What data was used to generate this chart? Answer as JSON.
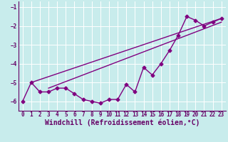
{
  "xlabel": "Windchill (Refroidissement éolien,°C)",
  "bg_color": "#c8ecec",
  "grid_color": "#aad8d8",
  "line_color": "#800080",
  "xlim": [
    -0.5,
    23.5
  ],
  "ylim": [
    -6.5,
    -0.7
  ],
  "yticks": [
    -6,
    -5,
    -4,
    -3,
    -2,
    -1
  ],
  "xticks": [
    0,
    1,
    2,
    3,
    4,
    5,
    6,
    7,
    8,
    9,
    10,
    11,
    12,
    13,
    14,
    15,
    16,
    17,
    18,
    19,
    20,
    21,
    22,
    23
  ],
  "data_x": [
    0,
    1,
    2,
    3,
    4,
    5,
    6,
    7,
    8,
    9,
    10,
    11,
    12,
    13,
    14,
    15,
    16,
    17,
    18,
    19,
    20,
    21,
    22,
    23
  ],
  "data_y": [
    -6.0,
    -5.0,
    -5.5,
    -5.5,
    -5.3,
    -5.3,
    -5.6,
    -5.9,
    -6.0,
    -6.1,
    -5.9,
    -5.9,
    -5.1,
    -5.5,
    -4.2,
    -4.6,
    -4.0,
    -3.3,
    -2.5,
    -1.5,
    -1.7,
    -2.0,
    -1.8,
    -1.6
  ],
  "line1_x": [
    1,
    23
  ],
  "line1_y": [
    -5.0,
    -1.6
  ],
  "line2_x": [
    3,
    23
  ],
  "line2_y": [
    -5.3,
    -1.8
  ],
  "marker": "D",
  "marker_size": 2.5,
  "line_width": 1.0,
  "font_color": "#660066",
  "axis_color": "#660066",
  "tick_fontsize": 5.5,
  "xlabel_fontsize": 7.0
}
